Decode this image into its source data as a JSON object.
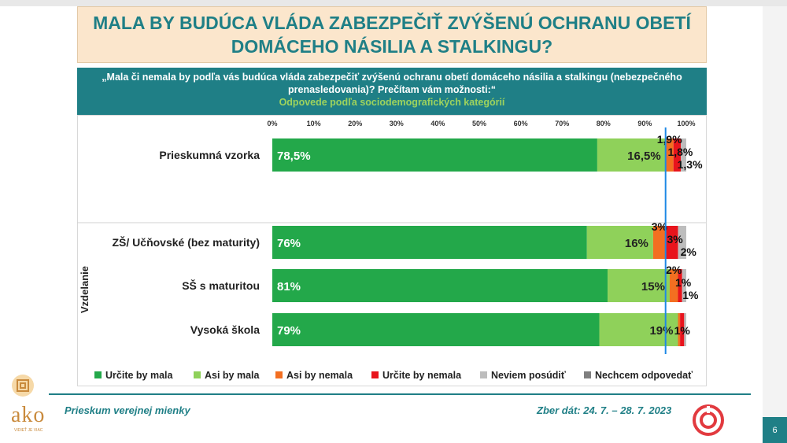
{
  "title": {
    "line1": "MALA BY BUDÚCA VLÁDA ZABEZPEČIŤ ZVÝŠENÚ OCHRANU OBETÍ",
    "line2": "DOMÁCEHO NÁSILIA A STALKINGU?"
  },
  "question": {
    "line1": "„Mala či nemala by podľa vás budúca vláda zabezpečiť zvýšenú ochranu obetí domáceho násilia a stalkingu (nebezpečného",
    "line2": "prenasledovania)? Prečítam vám možnosti:“",
    "subtitle": "Odpovede podľa sociodemografických kategórií"
  },
  "footer": {
    "left": "Prieskum verejnej mienky",
    "right": "Zber dát: 24. 7. – 28. 7. 2023",
    "page": "6"
  },
  "logo": {
    "text": "ako",
    "sub": "VIDIEŤ JE VIAC"
  },
  "chart_data": {
    "type": "bar",
    "orientation": "horizontal-stacked",
    "xlim": [
      0,
      100
    ],
    "x_ticks": [
      "0%",
      "10%",
      "20%",
      "30%",
      "40%",
      "50%",
      "60%",
      "70%",
      "80%",
      "90%",
      "100%"
    ],
    "group_label": "Vzdelanie",
    "categories": [
      "Prieskumná vzorka",
      "ZŠ/ Učňovské (bez maturity)",
      "SŠ s maturitou",
      "Vysoká škola"
    ],
    "series": [
      {
        "name": "Určite by mala",
        "color": "#23a84a",
        "values": [
          78.5,
          76,
          81,
          79
        ],
        "labels": [
          "78,5%",
          "76%",
          "81%",
          "79%"
        ]
      },
      {
        "name": "Asi by mala",
        "color": "#8fd15a",
        "values": [
          16.5,
          16,
          15,
          19
        ],
        "labels": [
          "16,5%",
          "16%",
          "15%",
          "19%"
        ]
      },
      {
        "name": "Asi by nemala",
        "color": "#f36f21",
        "values": [
          1.9,
          3,
          2,
          0.5
        ],
        "labels": [
          "1,9%",
          "3%",
          "2%",
          ""
        ]
      },
      {
        "name": "Určite by nemala",
        "color": "#e8141c",
        "values": [
          1.8,
          3,
          1,
          1
        ],
        "labels": [
          "1,8%",
          "3%",
          "1%",
          "1%"
        ]
      },
      {
        "name": "Neviem posúdiť",
        "color": "#bdbdbd",
        "values": [
          1.3,
          2,
          1,
          0.5
        ],
        "labels": [
          "1,3%",
          "2%",
          "1%",
          ""
        ]
      },
      {
        "name": "Nechcem odpovedať",
        "color": "#7f7f7f",
        "values": [
          0,
          0,
          0,
          0
        ],
        "labels": [
          "",
          "",
          "",
          ""
        ]
      }
    ],
    "reference_line_value": 95,
    "legend_position": "bottom"
  }
}
